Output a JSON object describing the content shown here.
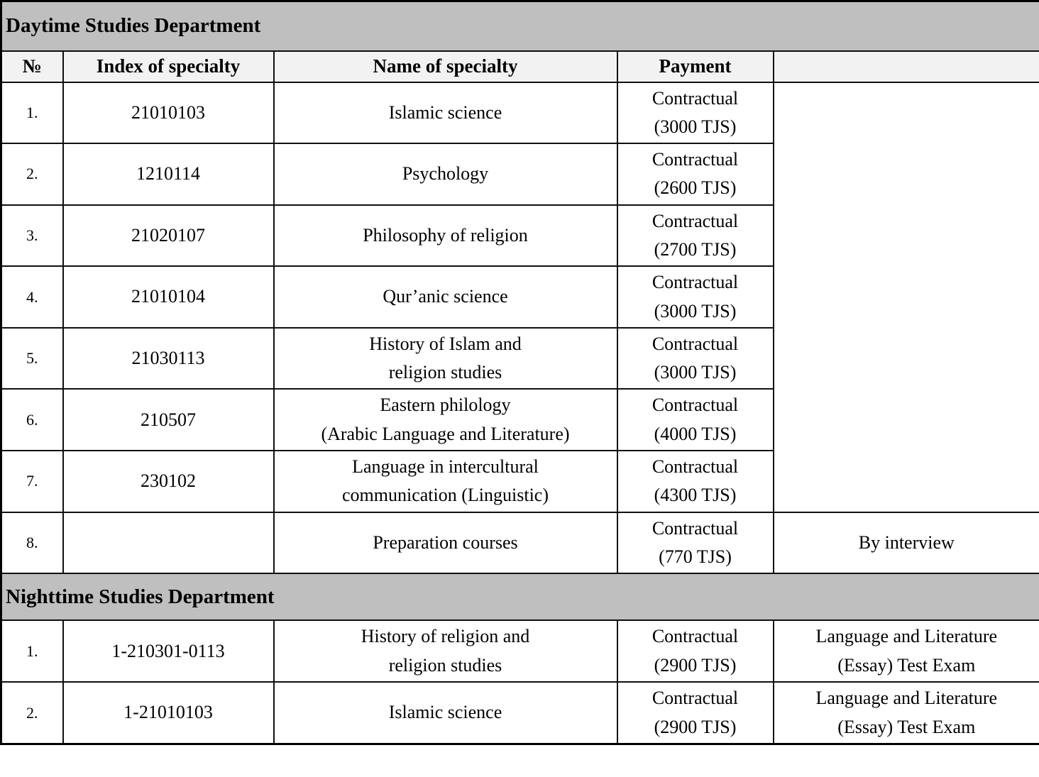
{
  "table": {
    "columns": [
      "№",
      "Index of specialty",
      "Name of specialty",
      "Payment",
      ""
    ],
    "colors": {
      "section_header_bg": "#bfbfbf",
      "column_header_bg": "#f2f2f2",
      "body_bg": "#ffffff",
      "border": "#101010"
    },
    "sections": [
      {
        "title": "Daytime Studies Department",
        "rows": [
          {
            "no": "1.",
            "index": "21010103",
            "name": "Islamic science",
            "payment": "Contractual\n(3000 TJS)",
            "exam": ""
          },
          {
            "no": "2.",
            "index": "1210114",
            "name": "Psychology",
            "payment": "Contractual\n(2600 TJS)"
          },
          {
            "no": "3.",
            "index": "21020107",
            "name": "Philosophy of religion",
            "payment": "Contractual\n(2700 TJS)"
          },
          {
            "no": "4.",
            "index": "21010104",
            "name": "Qur’anic science",
            "payment": "Contractual\n(3000 TJS)"
          },
          {
            "no": "5.",
            "index": "21030113",
            "name": "History of Islam and\nreligion studies",
            "payment": "Contractual\n(3000 TJS)"
          },
          {
            "no": "6.",
            "index": "210507",
            "name": "Eastern philology\n(Arabic Language and Literature)",
            "payment": "Contractual\n(4000 TJS)"
          },
          {
            "no": "7.",
            "index": "230102",
            "name": "Language in intercultural\ncommunication (Linguistic)",
            "payment": "Contractual\n(4300 TJS)"
          },
          {
            "no": "8.",
            "index": "",
            "name": "Preparation courses",
            "payment": "Contractual\n(770 TJS)",
            "exam": "By interview"
          }
        ]
      },
      {
        "title": "Nighttime Studies Department",
        "rows": [
          {
            "no": "1.",
            "index": "1-210301-0113",
            "name": "History of religion and\nreligion studies",
            "payment": "Contractual\n(2900 TJS)",
            "exam": "Language and Literature\n(Essay) Test Exam"
          },
          {
            "no": "2.",
            "index": "1-21010103",
            "name": "Islamic science",
            "payment": "Contractual\n(2900 TJS)",
            "exam": "Language and Literature\n(Essay) Test Exam"
          }
        ]
      }
    ]
  }
}
